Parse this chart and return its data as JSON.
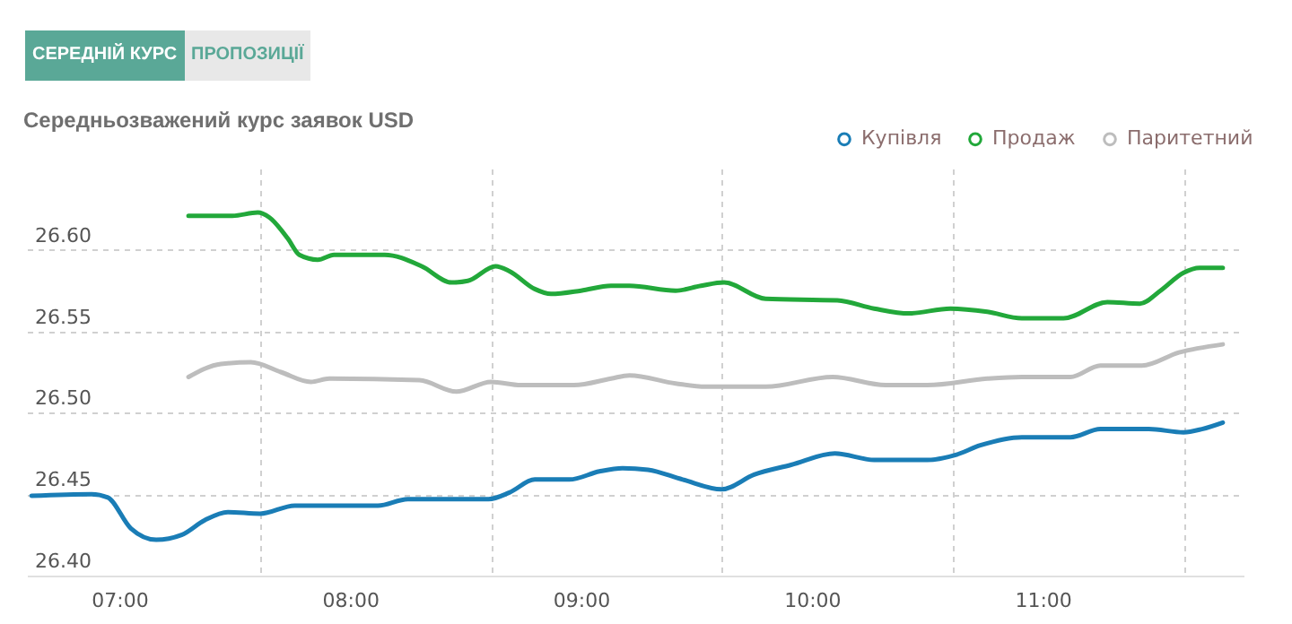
{
  "chart_data": {
    "type": "line",
    "title": "Середньозважений курс заявок USD",
    "annotations": [
      "СЕРЕДНІЙ КУРС",
      "ПРОПОЗИЦІЇ"
    ],
    "xlim": [
      6.6,
      11.87
    ],
    "xticks": [
      {
        "value": 7,
        "label": "07:00"
      },
      {
        "value": 7.61,
        "label": null
      },
      {
        "value": 8,
        "label": "08:00"
      },
      {
        "value": 8.61,
        "label": null
      },
      {
        "value": 9,
        "label": "09:00"
      },
      {
        "value": 9.61,
        "label": null
      },
      {
        "value": 10,
        "label": "10:00"
      },
      {
        "value": 10.61,
        "label": null
      },
      {
        "value": 11,
        "label": "11:00"
      },
      {
        "value": 11.61,
        "label": null
      }
    ],
    "ylim": [
      26.4,
      26.65
    ],
    "yticks": [
      {
        "value": 26.4,
        "label": "26.40"
      },
      {
        "value": 26.45,
        "label": "26.45"
      },
      {
        "value": 26.5,
        "label": "26.50"
      },
      {
        "value": 26.55,
        "label": "26.55"
      },
      {
        "value": 26.6,
        "label": "26.60"
      }
    ],
    "grid": true,
    "legend": "top right",
    "marker": "none",
    "line_style": "solid",
    "series": [
      {
        "name": "Купівля",
        "color": "#1a7db6",
        "x": [
          6.62,
          6.88,
          6.95,
          7.05,
          7.16,
          7.27,
          7.37,
          7.47,
          7.61,
          7.76,
          8.12,
          8.25,
          8.54,
          8.6,
          8.69,
          8.8,
          8.95,
          9.08,
          9.18,
          9.29,
          9.44,
          9.61,
          9.75,
          9.91,
          10.1,
          10.27,
          10.5,
          10.62,
          10.73,
          10.91,
          11.12,
          11.25,
          11.46,
          11.61,
          11.69,
          11.78
        ],
        "values": [
          26.449,
          26.45,
          26.448,
          26.429,
          26.422,
          26.425,
          26.434,
          26.439,
          26.438,
          26.443,
          26.443,
          26.447,
          26.447,
          26.447,
          26.451,
          26.459,
          26.459,
          26.464,
          26.466,
          26.465,
          26.459,
          26.453,
          26.462,
          26.468,
          26.475,
          26.471,
          26.471,
          26.474,
          26.48,
          26.485,
          26.485,
          26.49,
          26.49,
          26.488,
          26.49,
          26.494
        ]
      },
      {
        "name": "Продаж",
        "color": "#22a83a",
        "x": [
          7.3,
          7.49,
          7.6,
          7.65,
          7.73,
          7.78,
          7.86,
          7.93,
          8.15,
          8.31,
          8.44,
          8.51,
          8.63,
          8.69,
          8.8,
          8.87,
          9.0,
          9.13,
          9.21,
          9.41,
          9.52,
          9.62,
          9.8,
          10.11,
          10.27,
          10.42,
          10.6,
          10.76,
          10.91,
          11.09,
          11.28,
          11.42,
          11.51,
          11.61,
          11.68,
          11.78
        ],
        "values": [
          26.621,
          26.621,
          26.623,
          26.62,
          26.607,
          26.597,
          26.594,
          26.597,
          26.597,
          26.59,
          26.58,
          26.581,
          26.59,
          26.587,
          26.576,
          26.573,
          26.575,
          26.578,
          26.578,
          26.575,
          26.578,
          26.58,
          26.57,
          26.569,
          26.564,
          26.561,
          26.564,
          26.562,
          26.558,
          26.558,
          26.568,
          26.567,
          26.575,
          26.586,
          26.589,
          26.589
        ]
      },
      {
        "name": "Паритетний",
        "color": "#bdbdbd",
        "x": [
          7.3,
          7.44,
          7.57,
          7.7,
          7.83,
          7.91,
          8.3,
          8.46,
          8.61,
          8.74,
          8.97,
          9.13,
          9.21,
          9.41,
          9.54,
          9.8,
          10.09,
          10.32,
          10.5,
          10.76,
          10.91,
          11.12,
          11.25,
          11.43,
          11.59,
          11.78
        ],
        "values": [
          26.522,
          26.53,
          26.531,
          26.525,
          26.519,
          26.521,
          26.52,
          26.513,
          26.519,
          26.517,
          26.517,
          26.521,
          26.523,
          26.518,
          26.516,
          26.516,
          26.522,
          26.517,
          26.517,
          26.521,
          26.522,
          26.522,
          26.529,
          26.529,
          26.537,
          26.542
        ]
      }
    ]
  }
}
